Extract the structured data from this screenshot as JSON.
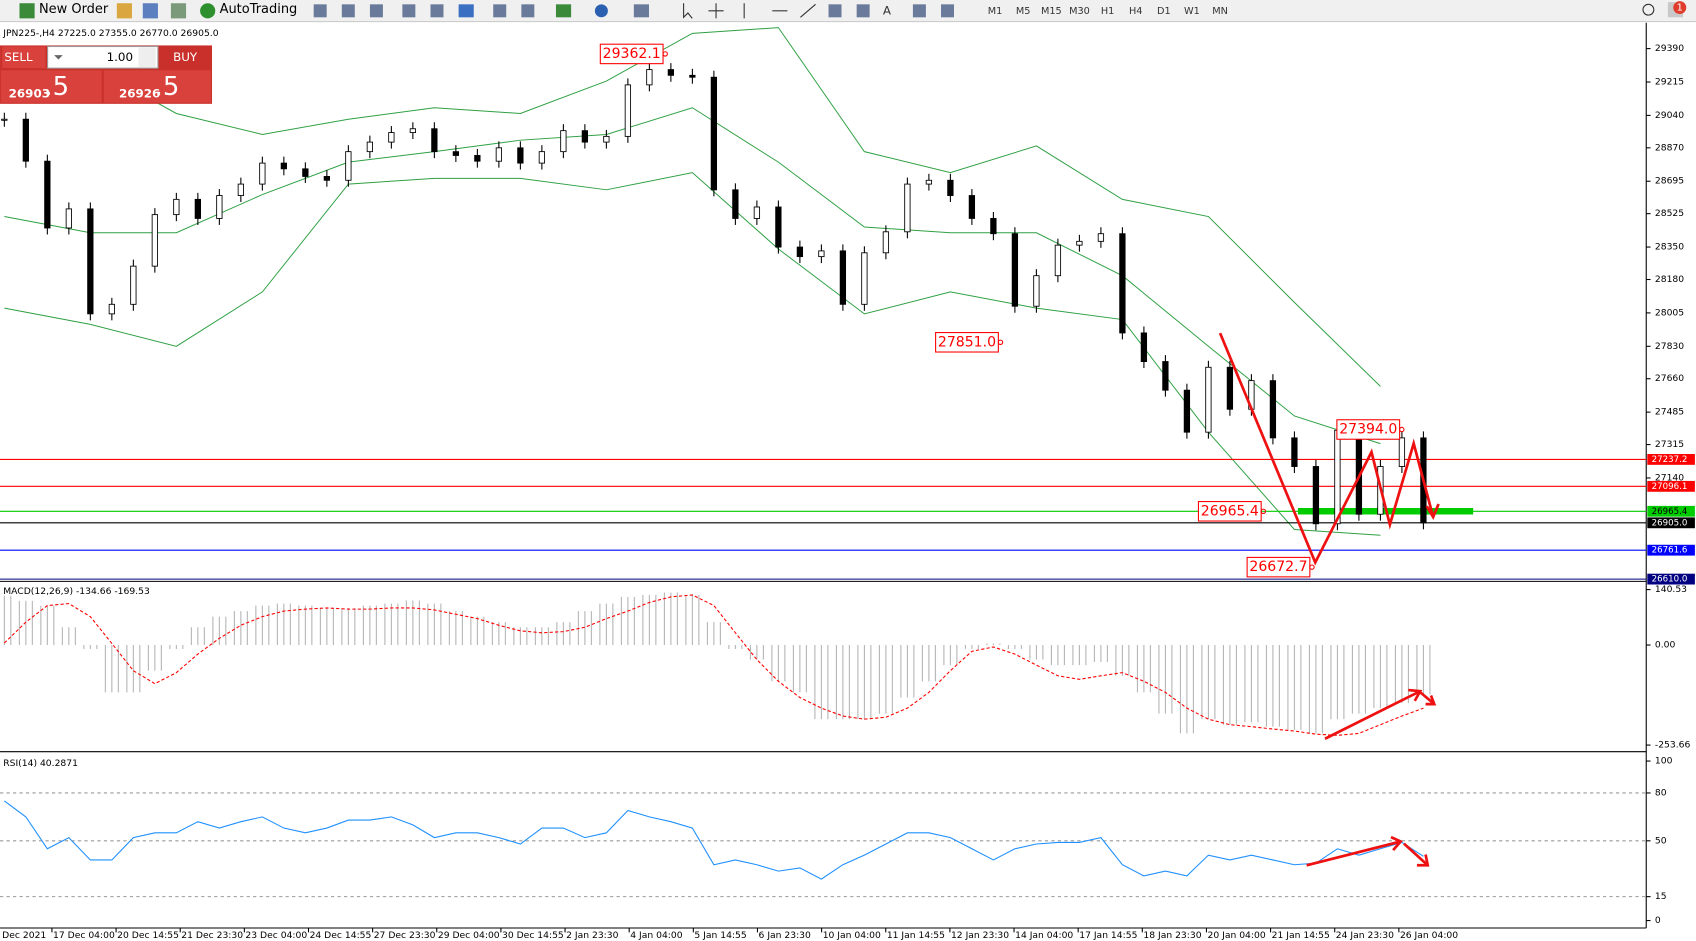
{
  "toolbar": {
    "new_order": "New Order",
    "autotrading": "AutoTrading",
    "timeframes": [
      "M1",
      "M5",
      "M15",
      "M30",
      "H1",
      "H4",
      "D1",
      "W1",
      "MN"
    ],
    "badge": "1"
  },
  "trade_panel": {
    "sell": "SELL",
    "lot": "1.00",
    "buy": "BUY",
    "sell_price_main": "26903",
    "sell_price_tail": ".5",
    "buy_price_main": "26926",
    "buy_price_tail": ".5"
  },
  "time_axis": {
    "labels": [
      "Dec 2021",
      "17 Dec 04:00",
      "20 Dec 14:55",
      "21 Dec 23:30",
      "23 Dec 04:00",
      "24 Dec 14:55",
      "27 Dec 23:30",
      "29 Dec 04:00",
      "30 Dec 14:55",
      "2 Jan 23:30",
      "4 Jan 04:00",
      "5 Jan 14:55",
      "6 Jan 23:30",
      "10 Jan 04:00",
      "11 Jan 14:55",
      "12 Jan 23:30",
      "14 Jan 04:00",
      "17 Jan 14:55",
      "18 Jan 23:30",
      "20 Jan 04:00",
      "21 Jan 14:55",
      "24 Jan 23:30",
      "26 Jan 04:00"
    ]
  },
  "chart_data": [
    {
      "type": "candlestick",
      "title": "JPN225-,H4  27225.0 27355.0 26770.0 26905.0",
      "values": [
        29020,
        28800,
        28450,
        28550,
        28000,
        28050,
        28250,
        28520,
        28600,
        28500,
        28620,
        28680,
        28790,
        28760,
        28720,
        28700,
        28850,
        28900,
        28950,
        28970,
        28850,
        28830,
        28800,
        28870,
        28790,
        28850,
        28960,
        28900,
        28930,
        29200,
        29280,
        29250,
        29240,
        28650,
        28500,
        28560,
        28350,
        28300,
        28330,
        28050,
        28320,
        28430,
        28680,
        28700,
        28620,
        28500,
        28420,
        28040,
        28200,
        28360,
        28380,
        28420,
        27900,
        27750,
        27600,
        27380,
        27720,
        27500,
        27650,
        27350,
        27200,
        26900,
        27390,
        26950,
        27200,
        27350,
        26905
      ],
      "bands": [
        {
          "color": "#2ea043",
          "values": [
            29360,
            29300,
            29050,
            28940,
            29020,
            29080,
            29050,
            29220,
            29470,
            29500,
            28850,
            28740,
            28880,
            28600,
            28510,
            28060,
            27620
          ]
        },
        {
          "color": "#2ea043",
          "values": [
            28510,
            28425,
            28425,
            28625,
            28795,
            28850,
            28910,
            28940,
            29080,
            28795,
            28455,
            28425,
            28425,
            28200,
            27830,
            27465,
            27320
          ]
        },
        {
          "color": "#2ea043",
          "values": [
            28030,
            27945,
            27830,
            28115,
            28680,
            28710,
            28710,
            28650,
            28740,
            28340,
            28000,
            28115,
            28030,
            27970,
            27380,
            26870,
            26840
          ]
        }
      ],
      "price_lines": [
        {
          "price": 27237.2,
          "color": "#ff0000"
        },
        {
          "price": 27096.1,
          "color": "#ff0000"
        },
        {
          "price": 26965.4,
          "color": "#00cc00"
        },
        {
          "price": {
            "value": 26905,
            "label": "26905.0"
          },
          "color": "#000000"
        },
        {
          "price": 26761.6,
          "color": "#0000ff"
        },
        {
          "price": {
            "value": 26610,
            "label": "26610.0"
          },
          "color": "#000080"
        }
      ],
      "annotations": [
        {
          "value": 29362.1,
          "label": "29362.1"
        },
        {
          "value": 27851,
          "label": "27851.0"
        },
        {
          "value": 26965.4,
          "label": "26965.4"
        },
        {
          "value": 26672.7,
          "label": "26672.7"
        },
        {
          "value": 27394,
          "label": "27394.0"
        }
      ],
      "ylim": [
        26601,
        29520
      ],
      "yticks": [
        29390,
        29215,
        29040,
        28870,
        28695,
        28525,
        28350,
        28180,
        28005,
        27830,
        27660,
        27485,
        27315,
        27140
      ]
    },
    {
      "type": "macd",
      "title": "MACD(12,26,9) -134.66 -169.53",
      "series": [
        {
          "name": "histogram",
          "color": "#b4b4b4",
          "values": [
            125,
            112,
            100,
            45,
            -10,
            -120,
            -120,
            -65,
            -10,
            45,
            72,
            86,
            100,
            105,
            100,
            94,
            94,
            100,
            105,
            113,
            105,
            86,
            72,
            58,
            45,
            45,
            58,
            86,
            105,
            122,
            127,
            133,
            127,
            58,
            -10,
            -37,
            -92,
            -120,
            -188,
            -188,
            -188,
            -174,
            -133,
            -92,
            -51,
            -10,
            4,
            -10,
            -37,
            -51,
            -51,
            -43,
            -78,
            -120,
            -174,
            -224,
            -188,
            -202,
            -196,
            -207,
            -215,
            -224,
            -188,
            -174,
            -160,
            -147,
            -125
          ]
        },
        {
          "name": "signal",
          "color": "#ff0000",
          "values": [
            5,
            58,
            100,
            105,
            72,
            4,
            -65,
            -98,
            -70,
            -23,
            17,
            50,
            72,
            86,
            91,
            94,
            91,
            91,
            94,
            94,
            89,
            78,
            67,
            50,
            36,
            31,
            34,
            45,
            67,
            86,
            108,
            122,
            127,
            100,
            31,
            -37,
            -92,
            -133,
            -160,
            -180,
            -188,
            -183,
            -160,
            -120,
            -65,
            -16,
            -5,
            -23,
            -51,
            -78,
            -87,
            -78,
            -70,
            -92,
            -120,
            -160,
            -188,
            -202,
            -207,
            -213,
            -218,
            -226,
            -229,
            -224,
            -202,
            -180,
            -160
          ]
        }
      ],
      "ylim": [
        -265,
        160
      ],
      "yticks": [
        140.53,
        {
          "value": 0,
          "label": "0.00"
        },
        -253.66
      ]
    },
    {
      "type": "line",
      "title": "RSI(14) 40.2871",
      "color": "#1e90ff",
      "values": [
        75,
        65,
        45,
        52,
        38,
        38,
        52,
        55,
        55,
        62,
        58,
        62,
        65,
        58,
        55,
        58,
        63,
        63,
        65,
        60,
        52,
        55,
        55,
        52,
        48,
        58,
        58,
        52,
        55,
        69,
        65,
        62,
        58,
        35,
        38,
        35,
        31,
        33,
        26,
        35,
        41,
        48,
        55,
        55,
        52,
        45,
        38,
        45,
        48,
        49,
        49,
        52,
        35,
        28,
        31,
        28,
        41,
        38,
        41,
        38,
        35,
        36,
        45,
        41,
        45,
        49,
        40.29
      ],
      "ylim": [
        -4,
        104.5
      ],
      "yticks": [
        100,
        80,
        50,
        15,
        0
      ],
      "grid_levels": [
        80,
        50,
        15
      ]
    }
  ]
}
